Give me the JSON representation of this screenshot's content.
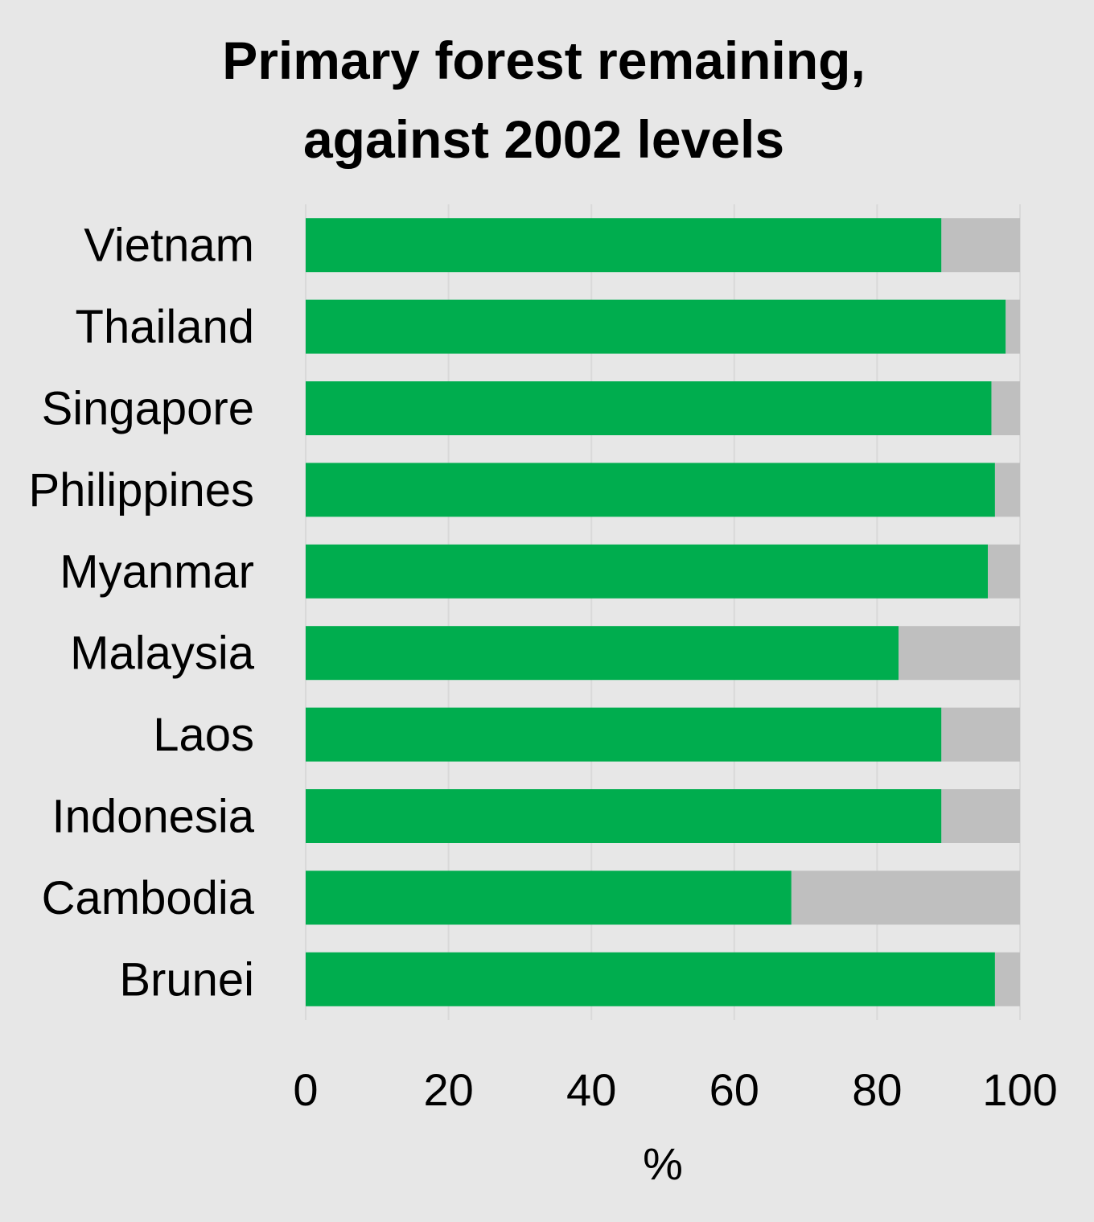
{
  "chart_data": {
    "type": "bar",
    "orientation": "horizontal",
    "stacked": true,
    "title_lines": [
      "Primary forest remaining,",
      "against 2002 levels"
    ],
    "xlabel": "%",
    "ylabel": "",
    "xlim": [
      0,
      100
    ],
    "x_ticks": [
      "0",
      "20",
      "40",
      "60",
      "80",
      "100"
    ],
    "grid": true,
    "legend": "none",
    "categories": [
      "Vietnam",
      "Thailand",
      "Singapore",
      "Philippines",
      "Myanmar",
      "Malaysia",
      "Laos",
      "Indonesia",
      "Cambodia",
      "Brunei"
    ],
    "series": [
      {
        "values": [
          89,
          98,
          96,
          96.5,
          95.5,
          83,
          89,
          89,
          68,
          96.5
        ],
        "color": "#00ad4e"
      },
      {
        "values": [
          11,
          2,
          4,
          3.5,
          4.5,
          17,
          11,
          11,
          32,
          3.5
        ],
        "color": "#bfbfbf"
      }
    ]
  },
  "colors": {
    "background": "#e7e7e7",
    "gridline": "#d9d9d9",
    "remaining": "#00ad4e",
    "lost": "#bfbfbf"
  }
}
